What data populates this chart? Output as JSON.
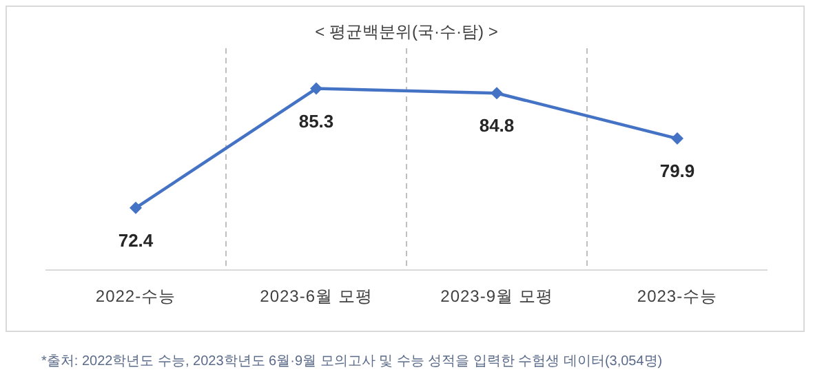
{
  "chart_data": {
    "type": "line",
    "title": "< 평균백분위(국·수·탐) >",
    "categories": [
      "2022-수능",
      "2023-6월 모평",
      "2023-9월 모평",
      "2023-수능"
    ],
    "series": [
      {
        "color": "#4472c4",
        "values": [
          72.4,
          85.3,
          84.8,
          79.9
        ]
      }
    ],
    "data_labels": true,
    "marker": "diamond",
    "line_style": "solid",
    "grid": "x",
    "relative": false,
    "annotations": [
      "*출처: 2022학년도 수능, 2023학년도 6월·9월 모의고사 및 수능 성적을 입력한 수험생 데이터(3,054명)"
    ]
  }
}
